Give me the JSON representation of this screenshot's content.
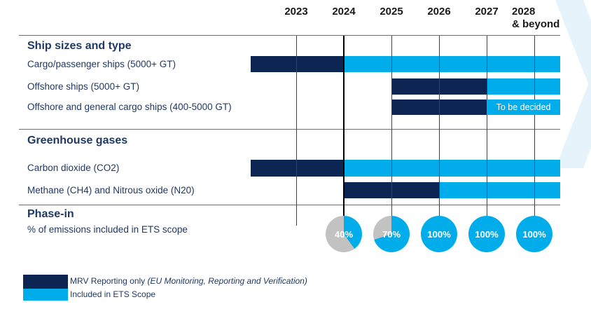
{
  "colors": {
    "mrv_navy": "#0d2552",
    "ets_blue": "#00adea",
    "pie_gray": "#c2c2c2",
    "heading_text": "#1f3864",
    "year_text": "#1a1a1a",
    "grid_line": "#404040",
    "divider": "#6f6f6f",
    "chevron_watermark": "#e7f3fb",
    "tbd_text": "#ffffff"
  },
  "chart_data": {
    "type": "timeline-gantt",
    "title": "",
    "x_axis": {
      "tick_years": [
        2023,
        2024,
        2025,
        2026,
        2027,
        2028
      ],
      "range_years": [
        2022.05,
        2028.55
      ],
      "grid": true
    },
    "years": [
      "2023",
      "2024",
      "2025",
      "2026",
      "2027",
      "2028"
    ],
    "year_sublabel": "& beyond",
    "sections": [
      {
        "heading": "Ship sizes and type",
        "rows": [
          {
            "label": "Cargo/passenger ships (5000+ GT)",
            "mrv": [
              2022.05,
              2024
            ],
            "ets": [
              2024,
              2028.55
            ]
          },
          {
            "label": "Offshore ships (5000+ GT)",
            "mrv": [
              2025,
              2027
            ],
            "ets": [
              2027,
              2028.55
            ]
          },
          {
            "label": "Offshore and general cargo ships (400-5000 GT)",
            "mrv": [
              2025,
              2027
            ],
            "ets": [
              2027,
              2028.55
            ],
            "ets_note": "To be decided"
          }
        ]
      },
      {
        "heading": "Greenhouse gases",
        "rows": [
          {
            "label": "Carbon dioxide (CO2)",
            "mrv": [
              2022.05,
              2024
            ],
            "ets": [
              2024,
              2028.55
            ]
          },
          {
            "label": "Methane (CH4) and Nitrous oxide (N20)",
            "mrv": [
              2024,
              2026
            ],
            "ets": [
              2026,
              2028.55
            ]
          }
        ]
      }
    ],
    "phase_in": {
      "heading": "Phase-in",
      "label": "% of emissions included in ETS scope",
      "points": [
        {
          "year": 2024,
          "pct": 40
        },
        {
          "year": 2025,
          "pct": 70
        },
        {
          "year": 2026,
          "pct": 100
        },
        {
          "year": 2027,
          "pct": 100
        },
        {
          "year": 2028,
          "pct": 100
        }
      ]
    }
  },
  "legend": {
    "mrv_label": "MRV Reporting only ",
    "mrv_label_italic": "(EU Monitoring, Reporting and Verification)",
    "ets_label": "Included in ETS Scope"
  }
}
